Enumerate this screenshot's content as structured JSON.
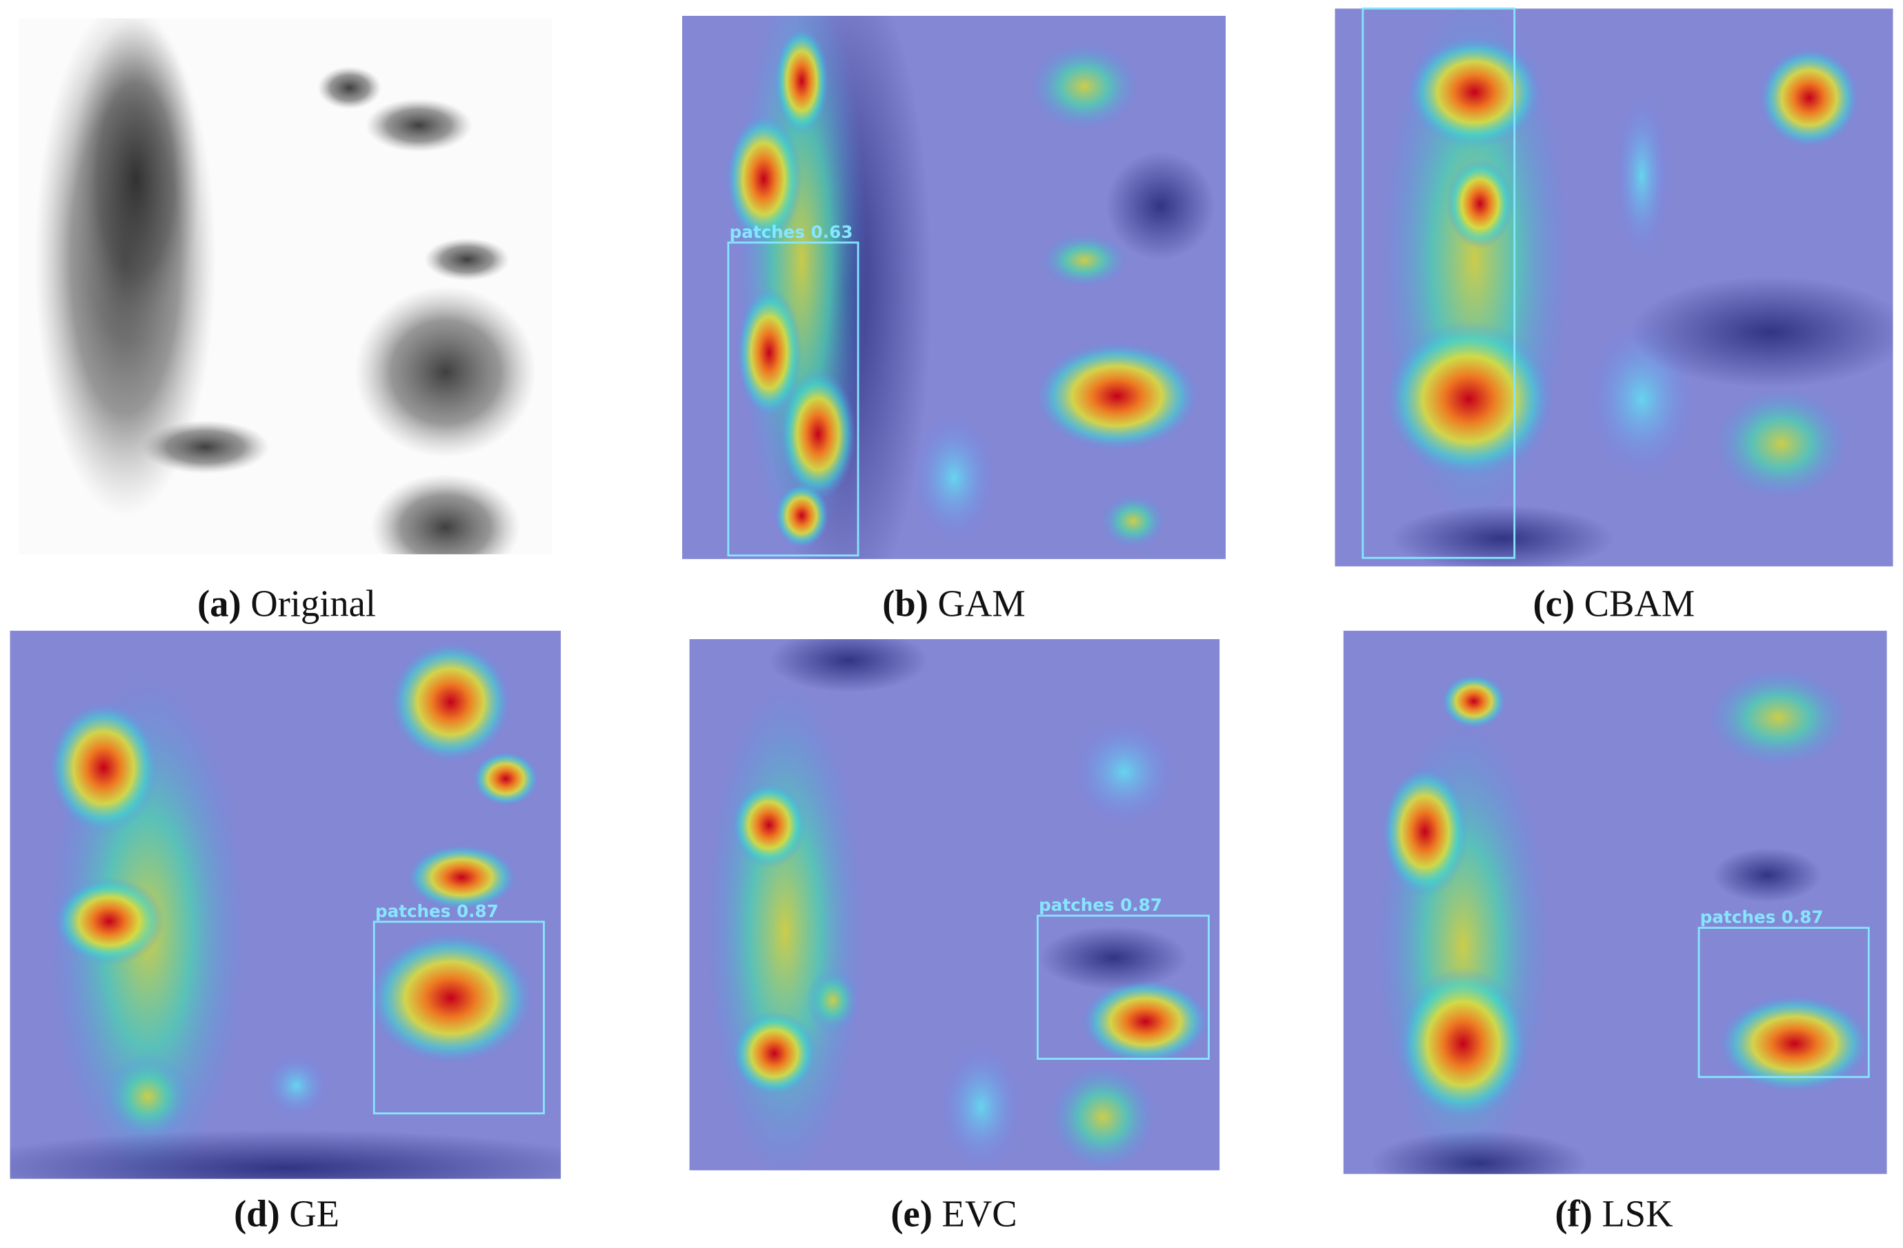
{
  "panels": [
    {
      "letter": "(a)",
      "name": "Original"
    },
    {
      "letter": "(b)",
      "name": "GAM",
      "box_label": "patches 0.63"
    },
    {
      "letter": "(c)",
      "name": "CBAM"
    },
    {
      "letter": "(d)",
      "name": "GE",
      "box_label": "patches 0.87"
    },
    {
      "letter": "(e)",
      "name": "EVC",
      "box_label": "patches 0.87"
    },
    {
      "letter": "(f)",
      "name": "LSK",
      "box_label": "patches 0.87"
    }
  ]
}
